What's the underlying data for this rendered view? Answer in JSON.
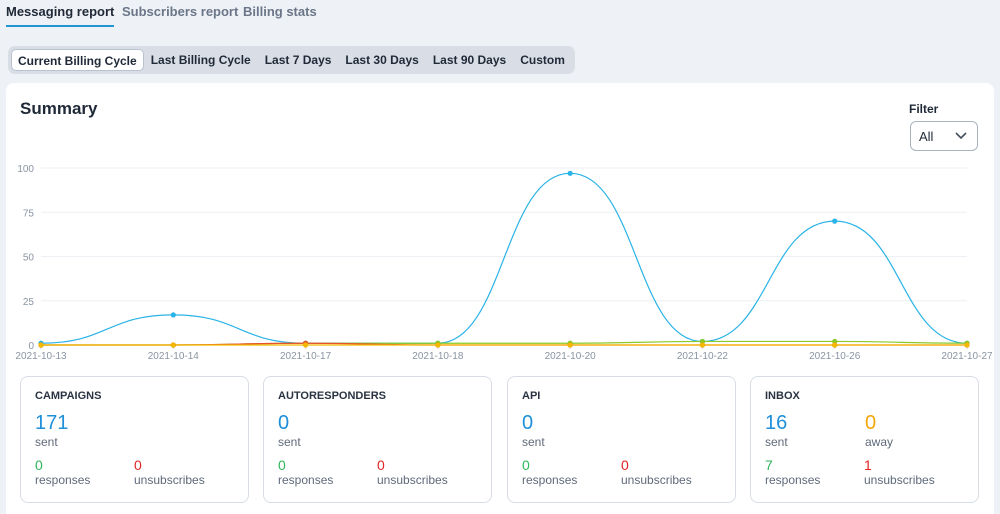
{
  "tabs": [
    {
      "label": "Messaging report",
      "active": true
    },
    {
      "label": "Subscribers report",
      "active": false
    },
    {
      "label": "Billing stats",
      "active": false
    }
  ],
  "ranges": [
    {
      "label": "Current Billing Cycle",
      "active": true
    },
    {
      "label": "Last Billing Cycle"
    },
    {
      "label": "Last 7 Days"
    },
    {
      "label": "Last 30 Days"
    },
    {
      "label": "Last 90 Days"
    },
    {
      "label": "Custom"
    }
  ],
  "summary": {
    "title": "Summary"
  },
  "filter": {
    "label": "Filter",
    "value": "All"
  },
  "colors": {
    "accent": "#2196d3",
    "sent": "#2ab3e6",
    "responses": "#8ac926",
    "unsubscribes": "#e8512e",
    "away": "#f5b800"
  },
  "chart_data": {
    "type": "line",
    "x": [
      "2021-10-13",
      "2021-10-14",
      "2021-10-17",
      "2021-10-18",
      "2021-10-20",
      "2021-10-22",
      "2021-10-26",
      "2021-10-27"
    ],
    "ylim": [
      0,
      100
    ],
    "yticks": [
      0,
      25,
      50,
      75,
      100
    ],
    "grid": true,
    "series": [
      {
        "color": "#2ab3e6",
        "values": [
          1,
          17,
          1,
          1,
          97,
          2,
          70,
          1
        ]
      },
      {
        "color": "#8ac926",
        "values": [
          0,
          0,
          1,
          1,
          1,
          2,
          2,
          1
        ]
      },
      {
        "color": "#e8512e",
        "values": [
          0,
          0,
          1,
          0,
          0,
          0,
          0,
          0
        ]
      },
      {
        "color": "#f5b800",
        "values": [
          0,
          0,
          0,
          0,
          0,
          0,
          0,
          0
        ]
      }
    ]
  },
  "stats": {
    "campaigns": {
      "title": "CAMPAIGNS",
      "sent": "171",
      "sent_label": "sent",
      "responses": "0",
      "responses_label": "responses",
      "unsubscribes": "0",
      "unsubscribes_label": "unsubscribes"
    },
    "autoresponders": {
      "title": "AUTORESPONDERS",
      "sent": "0",
      "sent_label": "sent",
      "responses": "0",
      "responses_label": "responses",
      "unsubscribes": "0",
      "unsubscribes_label": "unsubscribes"
    },
    "api": {
      "title": "API",
      "sent": "0",
      "sent_label": "sent",
      "responses": "0",
      "responses_label": "responses",
      "unsubscribes": "0",
      "unsubscribes_label": "unsubscribes"
    },
    "inbox": {
      "title": "INBOX",
      "sent": "16",
      "sent_label": "sent",
      "away": "0",
      "away_label": "away",
      "responses": "7",
      "responses_label": "responses",
      "unsubscribes": "1",
      "unsubscribes_label": "unsubscribes"
    }
  }
}
